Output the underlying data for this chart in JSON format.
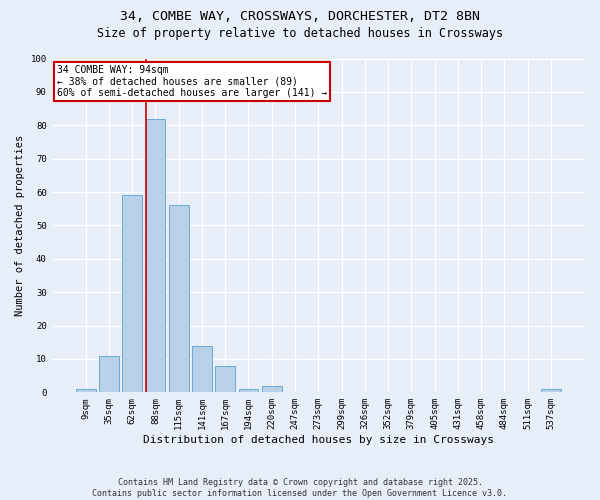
{
  "title1": "34, COMBE WAY, CROSSWAYS, DORCHESTER, DT2 8BN",
  "title2": "Size of property relative to detached houses in Crossways",
  "xlabel": "Distribution of detached houses by size in Crossways",
  "ylabel": "Number of detached properties",
  "bar_labels": [
    "9sqm",
    "35sqm",
    "62sqm",
    "88sqm",
    "115sqm",
    "141sqm",
    "167sqm",
    "194sqm",
    "220sqm",
    "247sqm",
    "273sqm",
    "299sqm",
    "326sqm",
    "352sqm",
    "379sqm",
    "405sqm",
    "431sqm",
    "458sqm",
    "484sqm",
    "511sqm",
    "537sqm"
  ],
  "bar_values": [
    1,
    11,
    59,
    82,
    56,
    14,
    8,
    1,
    2,
    0,
    0,
    0,
    0,
    0,
    0,
    0,
    0,
    0,
    0,
    0,
    1
  ],
  "bar_color": "#b8d0e8",
  "bar_edge_color": "#6aaad4",
  "vline_color": "#cc0000",
  "annotation_line1": "34 COMBE WAY: 94sqm",
  "annotation_line2": "← 38% of detached houses are smaller (89)",
  "annotation_line3": "60% of semi-detached houses are larger (141) →",
  "annotation_box_color": "white",
  "annotation_box_edge_color": "#cc0000",
  "ylim": [
    0,
    100
  ],
  "yticks": [
    0,
    10,
    20,
    30,
    40,
    50,
    60,
    70,
    80,
    90,
    100
  ],
  "background_color": "#e8eef8",
  "grid_color": "white",
  "footer": "Contains HM Land Registry data © Crown copyright and database right 2025.\nContains public sector information licensed under the Open Government Licence v3.0.",
  "title1_fontsize": 9.5,
  "title2_fontsize": 8.5,
  "ylabel_fontsize": 7.5,
  "xlabel_fontsize": 8,
  "tick_fontsize": 6.5,
  "footer_fontsize": 6,
  "annot_fontsize": 7
}
